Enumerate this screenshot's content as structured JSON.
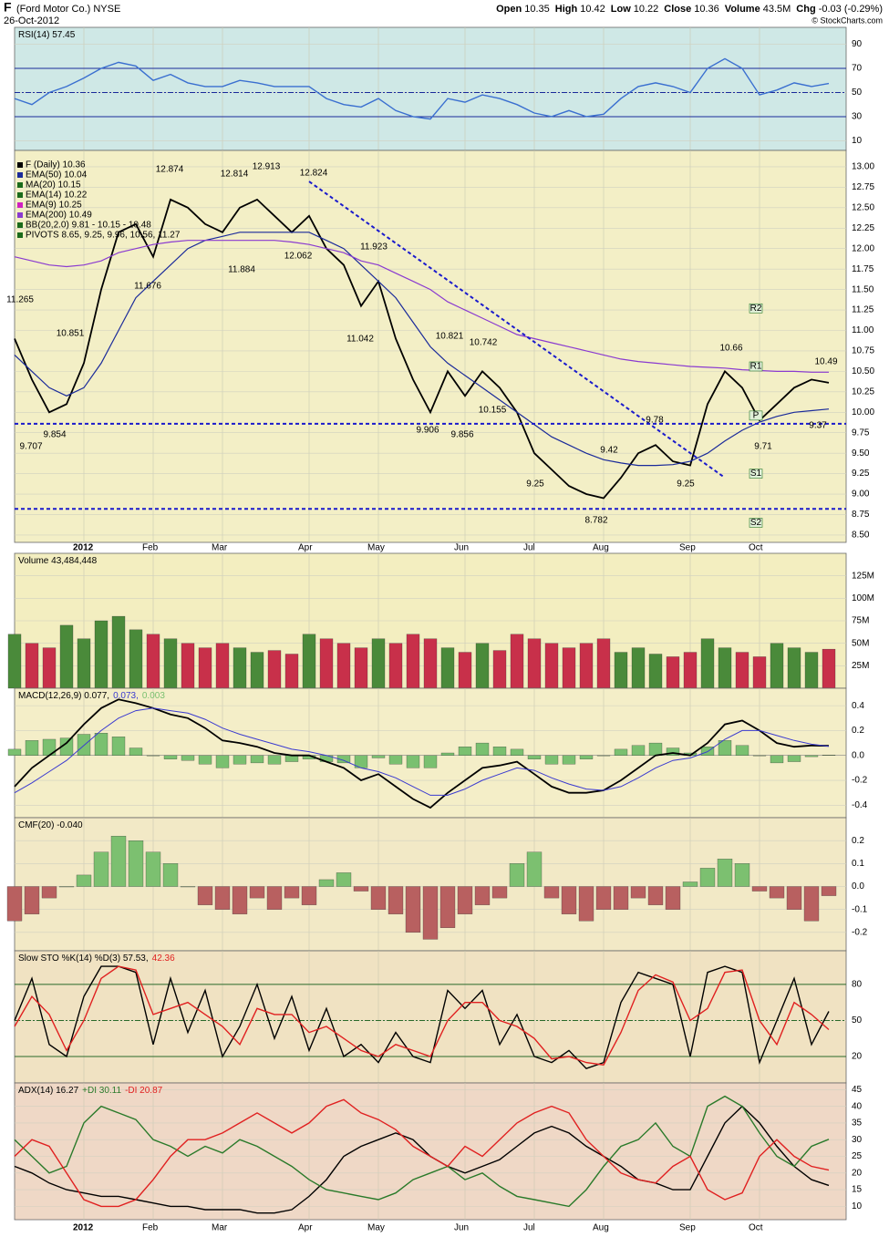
{
  "header": {
    "symbol": "F",
    "name": "(Ford Motor Co.) NYSE",
    "date": "26-Oct-2012",
    "quote": [
      {
        "label": "Open",
        "value": 10.35
      },
      {
        "label": "High",
        "value": 10.42
      },
      {
        "label": "Low",
        "value": 10.22
      },
      {
        "label": "Close",
        "value": 10.36
      },
      {
        "label": "Volume",
        "value": "43.5M"
      },
      {
        "label": "Chg",
        "value": "-0.03 (-0.29%)"
      }
    ],
    "credit": "© StockCharts.com"
  },
  "chart_data": [
    {
      "type": "line",
      "background": "#cfe8e6",
      "title_parts": [
        {
          "text": "RSI(14) 57.45",
          "color": "#000"
        }
      ],
      "ylim": [
        2,
        104
      ],
      "yticks": [
        90,
        70,
        50,
        30,
        10
      ],
      "levels": [
        70,
        30
      ],
      "midline": 50,
      "series": [
        {
          "color": "#3a6fd0",
          "values": [
            45,
            40,
            50,
            55,
            62,
            70,
            75,
            72,
            60,
            65,
            58,
            55,
            55,
            60,
            58,
            55,
            55,
            55,
            45,
            40,
            38,
            45,
            35,
            30,
            28,
            45,
            42,
            48,
            45,
            40,
            33,
            30,
            35,
            30,
            32,
            45,
            55,
            58,
            55,
            50,
            70,
            78,
            70,
            48,
            52,
            58,
            55,
            57.45
          ]
        }
      ]
    },
    {
      "type": "price",
      "background": "#f3efc6",
      "legend": [
        {
          "text": "F (Daily) 10.36",
          "color": "#000"
        },
        {
          "text": "EMA(50) 10.04",
          "color": "#1a2a9a"
        },
        {
          "text": "MA(20) 10.15",
          "color": "#1b6b1b"
        },
        {
          "text": "EMA(14) 10.22",
          "color": "#1b6b1b"
        },
        {
          "text": "EMA(9) 10.25",
          "color": "#d020c0"
        },
        {
          "text": "EMA(200) 10.49",
          "color": "#8a3ad0"
        },
        {
          "text": "BB(20,2.0) 9.81 - 10.15 - 10.48",
          "color": "#1b6b1b"
        },
        {
          "text": "PIVOTS 8.65, 9.25, 9.96, 10.56, 11.27",
          "color": "#1b6b1b"
        }
      ],
      "categories": [
        null,
        null,
        null,
        null,
        "2012",
        null,
        null,
        null,
        "Feb",
        null,
        null,
        null,
        "Mar",
        null,
        null,
        null,
        null,
        "Apr",
        null,
        null,
        null,
        "May",
        null,
        null,
        null,
        null,
        "Jun",
        null,
        null,
        null,
        "Jul",
        null,
        null,
        null,
        "Aug",
        null,
        null,
        null,
        null,
        "Sep",
        null,
        null,
        null,
        "Oct",
        null,
        null,
        null,
        null
      ],
      "ylim": [
        8.41,
        13.2
      ],
      "yticks": [
        {
          "value": 13,
          "label": "13.00"
        },
        {
          "value": 12.75,
          "label": "12.75"
        },
        {
          "value": 12.5,
          "label": "12.50"
        },
        {
          "value": 12.25,
          "label": "12.25"
        },
        {
          "value": 12,
          "label": "12.00"
        },
        {
          "value": 11.75,
          "label": "11.75"
        },
        {
          "value": 11.5,
          "label": "11.50"
        },
        {
          "value": 11.25,
          "label": "11.25"
        },
        {
          "value": 11,
          "label": "11.00"
        },
        {
          "value": 10.75,
          "label": "10.75"
        },
        {
          "value": 10.5,
          "label": "10.50"
        },
        {
          "value": 10.25,
          "label": "10.25"
        },
        {
          "value": 10,
          "label": "10.00"
        },
        {
          "value": 9.75,
          "label": "9.75"
        },
        {
          "value": 9.5,
          "label": "9.50"
        },
        {
          "value": 9.25,
          "label": "9.25"
        },
        {
          "value": 9,
          "label": "9.00"
        },
        {
          "value": 8.75,
          "label": "8.75"
        },
        {
          "value": 8.5,
          "label": "8.50"
        }
      ],
      "series": [
        {
          "color": "#000",
          "values": [
            10.9,
            10.4,
            10.0,
            10.1,
            10.6,
            11.5,
            12.2,
            12.3,
            11.9,
            12.6,
            12.5,
            12.3,
            12.2,
            12.5,
            12.6,
            12.4,
            12.2,
            12.4,
            12.0,
            11.8,
            11.3,
            11.6,
            10.9,
            10.4,
            10.0,
            10.5,
            10.2,
            10.5,
            10.3,
            10.0,
            9.5,
            9.3,
            9.1,
            9.0,
            8.95,
            9.2,
            9.5,
            9.6,
            9.4,
            9.35,
            10.1,
            10.5,
            10.3,
            9.9,
            10.1,
            10.3,
            10.4,
            10.36
          ]
        },
        {
          "color": "#1a2a9a",
          "values": [
            10.7,
            10.5,
            10.3,
            10.2,
            10.3,
            10.6,
            11.0,
            11.4,
            11.6,
            11.8,
            12.0,
            12.1,
            12.15,
            12.2,
            12.2,
            12.2,
            12.2,
            12.2,
            12.1,
            12.0,
            11.8,
            11.6,
            11.4,
            11.1,
            10.8,
            10.6,
            10.45,
            10.3,
            10.15,
            10.0,
            9.85,
            9.7,
            9.6,
            9.5,
            9.42,
            9.38,
            9.35,
            9.35,
            9.36,
            9.4,
            9.5,
            9.65,
            9.78,
            9.88,
            9.95,
            10.0,
            10.02,
            10.04
          ]
        },
        {
          "color": "#8a3ad0",
          "values": [
            11.9,
            11.85,
            11.8,
            11.78,
            11.8,
            11.85,
            11.95,
            12.0,
            12.05,
            12.08,
            12.1,
            12.1,
            12.1,
            12.1,
            12.1,
            12.1,
            12.08,
            12.05,
            12.0,
            11.95,
            11.85,
            11.8,
            11.7,
            11.6,
            11.5,
            11.35,
            11.25,
            11.15,
            11.05,
            10.95,
            10.9,
            10.85,
            10.8,
            10.75,
            10.7,
            10.65,
            10.62,
            10.6,
            10.58,
            10.56,
            10.55,
            10.54,
            10.52,
            10.51,
            10.5,
            10.5,
            10.49,
            10.49
          ]
        }
      ],
      "annotations": [
        12.874,
        12.814,
        12.913,
        12.824,
        11.923,
        11.265,
        11.676,
        11.884,
        12.062,
        11.042,
        10.851,
        10.821,
        10.742,
        10.155,
        9.906,
        9.856,
        9.707,
        9.854,
        9.42,
        9.78,
        9.25,
        9.25,
        8.782,
        10.66,
        10.49,
        9.71,
        9.37
      ],
      "hlines": [
        9.86,
        8.82
      ],
      "trendline": [
        [
          17,
          12.82
        ],
        [
          41,
          9.2
        ]
      ],
      "pivots": {
        "labels": [
          "R2",
          "R1",
          "P",
          "S1",
          "S2"
        ],
        "values": [
          11.27,
          10.56,
          9.96,
          9.25,
          8.65
        ]
      }
    },
    {
      "type": "bar",
      "background": "#f3eec0",
      "title_parts": [
        {
          "text": "Volume 43,484,448",
          "color": "#000"
        }
      ],
      "ylim": [
        0,
        150
      ],
      "yticks": [
        {
          "value": 125,
          "label": "125M"
        },
        {
          "value": 100,
          "label": "100M"
        },
        {
          "value": 75,
          "label": "75M"
        },
        {
          "value": 50,
          "label": "50M"
        },
        {
          "value": 25,
          "label": "25M"
        }
      ],
      "up_color": "#4a8a3a",
      "down_color": "#c8304a",
      "values": [
        60,
        50,
        45,
        70,
        55,
        75,
        80,
        65,
        60,
        55,
        50,
        45,
        50,
        45,
        40,
        42,
        38,
        60,
        55,
        50,
        45,
        55,
        50,
        60,
        55,
        45,
        40,
        50,
        42,
        60,
        55,
        50,
        45,
        50,
        55,
        40,
        45,
        38,
        35,
        40,
        55,
        45,
        40,
        35,
        50,
        45,
        40,
        43.48
      ]
    },
    {
      "type": "macd",
      "background": "#f4eec8",
      "title_parts": [
        {
          "text": "MACD(12,26,9) 0.077,",
          "color": "#000"
        },
        {
          "text": "0.073,",
          "color": "#3a3ad0"
        },
        {
          "text": "0.003",
          "color": "#7ac070"
        }
      ],
      "ylim": [
        -0.5,
        0.54
      ],
      "yticks": [
        0.4,
        0.2,
        {
          "value": 0,
          "label": "0.0"
        },
        -0.2,
        -0.4
      ],
      "bar_color": "#7ac070",
      "series": [
        {
          "color": "#000",
          "values": [
            -0.25,
            -0.1,
            0.0,
            0.1,
            0.25,
            0.38,
            0.45,
            0.42,
            0.38,
            0.33,
            0.3,
            0.22,
            0.12,
            0.1,
            0.07,
            0.02,
            0.0,
            0.0,
            -0.05,
            -0.1,
            -0.2,
            -0.15,
            -0.25,
            -0.35,
            -0.42,
            -0.3,
            -0.2,
            -0.1,
            -0.08,
            -0.05,
            -0.15,
            -0.25,
            -0.3,
            -0.3,
            -0.28,
            -0.2,
            -0.1,
            0.0,
            0.02,
            0.0,
            0.1,
            0.25,
            0.28,
            0.2,
            0.1,
            0.07,
            0.08,
            0.077
          ]
        },
        {
          "color": "#3a3ad0",
          "values": [
            -0.3,
            -0.22,
            -0.13,
            -0.04,
            0.08,
            0.2,
            0.3,
            0.36,
            0.38,
            0.36,
            0.34,
            0.29,
            0.22,
            0.17,
            0.13,
            0.09,
            0.05,
            0.03,
            0.0,
            -0.04,
            -0.1,
            -0.13,
            -0.18,
            -0.25,
            -0.32,
            -0.32,
            -0.27,
            -0.2,
            -0.15,
            -0.1,
            -0.12,
            -0.18,
            -0.23,
            -0.27,
            -0.28,
            -0.25,
            -0.18,
            -0.1,
            -0.04,
            -0.02,
            0.03,
            0.13,
            0.2,
            0.2,
            0.16,
            0.12,
            0.09,
            0.073
          ]
        }
      ],
      "histogram": [
        0.05,
        0.12,
        0.13,
        0.14,
        0.17,
        0.18,
        0.15,
        0.06,
        0.0,
        -0.03,
        -0.04,
        -0.07,
        -0.1,
        -0.07,
        -0.06,
        -0.07,
        -0.05,
        -0.03,
        -0.05,
        -0.06,
        -0.1,
        -0.02,
        -0.07,
        -0.1,
        -0.1,
        0.02,
        0.07,
        0.1,
        0.07,
        0.05,
        -0.03,
        -0.07,
        -0.07,
        -0.03,
        0.0,
        0.05,
        0.08,
        0.1,
        0.06,
        0.02,
        0.07,
        0.12,
        0.08,
        0.0,
        -0.06,
        -0.05,
        -0.01,
        0.003
      ]
    },
    {
      "type": "bar",
      "background": "#f2e9c6",
      "title_parts": [
        {
          "text": "CMF(20) -0.040",
          "color": "#000"
        }
      ],
      "ylim": [
        -0.28,
        0.3
      ],
      "yticks": [
        0.2,
        0.1,
        {
          "value": 0,
          "label": "0.0"
        },
        -0.1,
        -0.2
      ],
      "up_color": "#7cc070",
      "down_color": "#b86060",
      "values": [
        -0.15,
        -0.12,
        -0.05,
        0.0,
        0.05,
        0.15,
        0.22,
        0.2,
        0.15,
        0.1,
        0.0,
        -0.08,
        -0.1,
        -0.12,
        -0.05,
        -0.1,
        -0.05,
        -0.08,
        0.03,
        0.06,
        -0.02,
        -0.1,
        -0.12,
        -0.2,
        -0.23,
        -0.18,
        -0.12,
        -0.08,
        -0.05,
        0.1,
        0.15,
        -0.05,
        -0.12,
        -0.15,
        -0.1,
        -0.1,
        -0.05,
        -0.08,
        -0.1,
        0.02,
        0.08,
        0.12,
        0.1,
        -0.02,
        -0.05,
        -0.1,
        -0.15,
        -0.04
      ]
    },
    {
      "type": "line",
      "background": "#f0e2c2",
      "title_parts": [
        {
          "text": "Slow STO %K(14) %D(3) 57.53,",
          "color": "#000"
        },
        {
          "text": "42.36",
          "color": "#e02020"
        }
      ],
      "ylim": [
        -2,
        108
      ],
      "yticks": [
        80,
        50,
        20
      ],
      "levels": [
        80,
        20
      ],
      "midline": 50,
      "series": [
        {
          "color": "#000",
          "values": [
            50,
            85,
            30,
            20,
            70,
            95,
            95,
            90,
            30,
            85,
            40,
            75,
            20,
            45,
            80,
            35,
            70,
            25,
            60,
            20,
            30,
            15,
            40,
            20,
            15,
            75,
            60,
            75,
            30,
            55,
            20,
            15,
            25,
            10,
            15,
            65,
            90,
            85,
            80,
            20,
            90,
            95,
            90,
            15,
            50,
            85,
            30,
            57.53
          ]
        },
        {
          "color": "#e02020",
          "values": [
            45,
            70,
            55,
            25,
            50,
            85,
            95,
            92,
            55,
            60,
            65,
            55,
            45,
            30,
            60,
            55,
            55,
            40,
            45,
            35,
            25,
            20,
            30,
            25,
            20,
            50,
            65,
            65,
            50,
            45,
            35,
            18,
            20,
            15,
            13,
            40,
            75,
            88,
            82,
            50,
            60,
            90,
            92,
            50,
            30,
            65,
            55,
            42.36
          ]
        }
      ]
    },
    {
      "type": "line",
      "background": "#efd8c6",
      "title_parts": [
        {
          "text": "ADX(14) 16.27",
          "color": "#000"
        },
        {
          "text": "+DI 30.11",
          "color": "#2a7a2a"
        },
        {
          "text": "-DI 20.87",
          "color": "#e02020"
        }
      ],
      "ylim": [
        6,
        47
      ],
      "yticks": [
        45,
        40,
        35,
        30,
        25,
        20,
        15,
        10
      ],
      "series": [
        {
          "color": "#000",
          "values": [
            22,
            20,
            17,
            15,
            14,
            13,
            13,
            12,
            11,
            10,
            10,
            9,
            9,
            9,
            8,
            8,
            9,
            13,
            18,
            25,
            28,
            30,
            32,
            30,
            25,
            22,
            20,
            22,
            24,
            28,
            32,
            34,
            32,
            28,
            25,
            22,
            18,
            17,
            15,
            15,
            25,
            35,
            40,
            35,
            28,
            22,
            18,
            16.27
          ]
        },
        {
          "color": "#2a7a2a",
          "values": [
            30,
            25,
            20,
            22,
            35,
            40,
            38,
            36,
            30,
            28,
            25,
            28,
            26,
            30,
            28,
            25,
            22,
            18,
            15,
            14,
            13,
            12,
            14,
            18,
            20,
            22,
            18,
            20,
            16,
            13,
            12,
            11,
            10,
            15,
            22,
            28,
            30,
            35,
            28,
            25,
            40,
            43,
            40,
            32,
            25,
            22,
            28,
            30.11
          ]
        },
        {
          "color": "#e02020",
          "values": [
            25,
            30,
            28,
            20,
            12,
            10,
            10,
            12,
            18,
            25,
            30,
            30,
            32,
            35,
            38,
            35,
            32,
            35,
            40,
            42,
            38,
            36,
            33,
            28,
            25,
            22,
            28,
            25,
            30,
            35,
            38,
            40,
            38,
            30,
            25,
            20,
            18,
            17,
            22,
            25,
            15,
            12,
            14,
            25,
            30,
            25,
            22,
            20.87
          ]
        }
      ]
    }
  ]
}
